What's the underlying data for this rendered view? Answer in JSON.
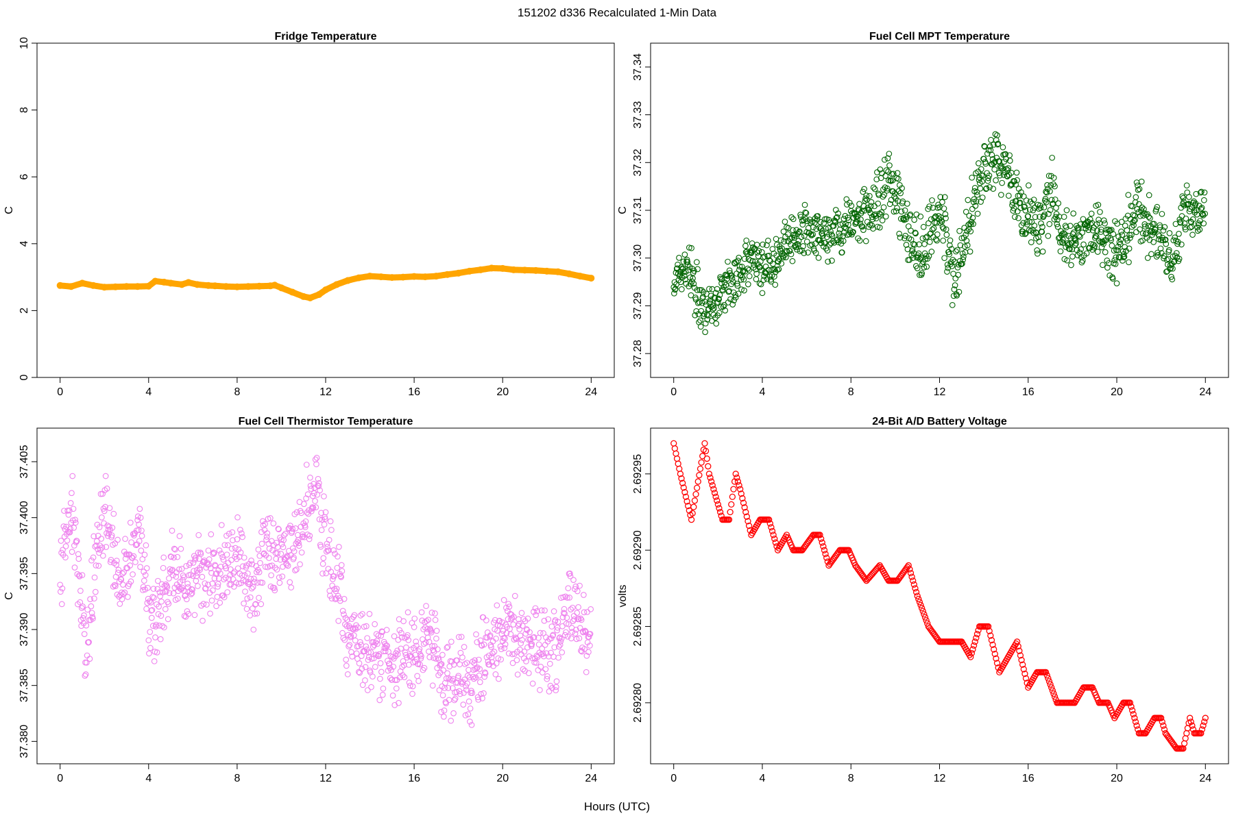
{
  "figure": {
    "title": "151202   d336   Recalculated 1-Min Data",
    "xlabel": "Hours (UTC)"
  },
  "chart_data": [
    {
      "type": "line",
      "title": "Fridge Temperature",
      "xlabel": "Hours (UTC)",
      "ylabel": "C",
      "color": "#FFA500",
      "xlim": [
        0,
        24
      ],
      "ylim": [
        0,
        10
      ],
      "xticks": [
        0,
        4,
        8,
        12,
        16,
        20,
        24
      ],
      "yticks": [
        0,
        2,
        4,
        6,
        8,
        10
      ],
      "ytick_labels": [
        "0",
        "2",
        "4",
        "6",
        "8",
        "10"
      ],
      "x": [
        0,
        0.5,
        1,
        1.5,
        2,
        2.5,
        3,
        3.5,
        4,
        4.3,
        4.7,
        5,
        5.5,
        5.8,
        6.2,
        6.7,
        7,
        7.5,
        8,
        8.5,
        9,
        9.5,
        9.7,
        10,
        10.5,
        11,
        11.3,
        11.7,
        12,
        12.5,
        13,
        13.5,
        14,
        14.5,
        15,
        15.5,
        16,
        16.5,
        17,
        17.5,
        18,
        18.5,
        19,
        19.5,
        20,
        20.5,
        21,
        21.5,
        22,
        22.5,
        23,
        23.5,
        24
      ],
      "values": [
        2.75,
        2.72,
        2.82,
        2.75,
        2.7,
        2.71,
        2.72,
        2.72,
        2.73,
        2.88,
        2.85,
        2.82,
        2.78,
        2.84,
        2.78,
        2.75,
        2.74,
        2.72,
        2.71,
        2.72,
        2.73,
        2.74,
        2.76,
        2.68,
        2.55,
        2.42,
        2.38,
        2.48,
        2.62,
        2.78,
        2.9,
        2.98,
        3.03,
        3.01,
        2.99,
        3.0,
        3.02,
        3.01,
        3.03,
        3.08,
        3.12,
        3.18,
        3.22,
        3.27,
        3.26,
        3.22,
        3.21,
        3.2,
        3.18,
        3.16,
        3.1,
        3.03,
        2.97
      ]
    },
    {
      "type": "scatter",
      "title": "Fuel Cell MPT Temperature",
      "xlabel": "Hours (UTC)",
      "ylabel": "C",
      "color": "#006400",
      "xlim": [
        0,
        24
      ],
      "ylim": [
        37.275,
        37.345
      ],
      "xticks": [
        0,
        4,
        8,
        12,
        16,
        20,
        24
      ],
      "yticks": [
        37.28,
        37.29,
        37.3,
        37.31,
        37.32,
        37.33,
        37.34
      ],
      "ytick_labels": [
        "37.28",
        "37.29",
        "37.30",
        "37.31",
        "37.32",
        "37.33",
        "37.34"
      ],
      "x": [
        0,
        0.7,
        1.5,
        2.5,
        3.5,
        4.3,
        5,
        6,
        7,
        8,
        9,
        9.8,
        10.5,
        11.2,
        12,
        12.7,
        13.3,
        14,
        14.5,
        15,
        16,
        16.5,
        17,
        17.5,
        18,
        19,
        20,
        21,
        21.5,
        22,
        22.5,
        23,
        24
      ],
      "values": [
        37.295,
        37.298,
        37.288,
        37.295,
        37.299,
        37.298,
        37.303,
        37.306,
        37.304,
        37.308,
        37.31,
        37.318,
        37.307,
        37.301,
        37.31,
        37.296,
        37.306,
        37.32,
        37.321,
        37.318,
        37.308,
        37.305,
        37.315,
        37.305,
        37.303,
        37.306,
        37.301,
        37.31,
        37.306,
        37.305,
        37.298,
        37.31,
        37.31
      ],
      "spreads": [
        0.0035,
        0.006,
        0.006,
        0.005,
        0.005,
        0.006,
        0.005,
        0.005,
        0.005,
        0.005,
        0.006,
        0.009,
        0.007,
        0.007,
        0.007,
        0.007,
        0.006,
        0.008,
        0.006,
        0.005,
        0.007,
        0.007,
        0.008,
        0.006,
        0.006,
        0.006,
        0.006,
        0.007,
        0.006,
        0.006,
        0.006,
        0.005,
        0.004
      ]
    },
    {
      "type": "scatter",
      "title": "Fuel Cell Thermistor Temperature",
      "xlabel": "Hours (UTC)",
      "ylabel": "C",
      "color": "#EE82EE",
      "xlim": [
        0,
        24
      ],
      "ylim": [
        37.378,
        37.408
      ],
      "xticks": [
        0,
        4,
        8,
        12,
        16,
        20,
        24
      ],
      "yticks": [
        37.38,
        37.385,
        37.39,
        37.395,
        37.4,
        37.405
      ],
      "ytick_labels": [
        "37.380",
        "37.385",
        "37.390",
        "37.395",
        "37.400",
        "37.405"
      ],
      "x": [
        0,
        0.5,
        1,
        1.2,
        1.5,
        2,
        2.4,
        2.7,
        3,
        3.5,
        4,
        4.3,
        5,
        6,
        7,
        8,
        8.7,
        9.2,
        10,
        10.6,
        11.2,
        11.6,
        12,
        12.6,
        13,
        14,
        15,
        16,
        17,
        17.3,
        18,
        18.5,
        19,
        20,
        21,
        22,
        22.5,
        23,
        24
      ],
      "values": [
        37.394,
        37.402,
        37.392,
        37.388,
        37.395,
        37.401,
        37.397,
        37.393,
        37.396,
        37.399,
        37.392,
        37.391,
        37.395,
        37.394,
        37.395,
        37.396,
        37.393,
        37.397,
        37.396,
        37.398,
        37.401,
        37.403,
        37.397,
        37.394,
        37.39,
        37.388,
        37.387,
        37.388,
        37.389,
        37.384,
        37.387,
        37.385,
        37.387,
        37.39,
        37.389,
        37.388,
        37.388,
        37.392,
        37.389
      ]
    },
    {
      "type": "scatter",
      "title": "24-Bit A/D Battery Voltage",
      "xlabel": "Hours (UTC)",
      "ylabel": "volts",
      "color": "#FF0000",
      "xlim": [
        0,
        24
      ],
      "ylim": [
        2.69276,
        2.69298
      ],
      "xticks": [
        0,
        4,
        8,
        12,
        16,
        20,
        24
      ],
      "yticks": [
        2.6928,
        2.69285,
        2.6929,
        2.69295
      ],
      "ytick_labels": [
        "2.69280",
        "2.69285",
        "2.69290",
        "2.69295"
      ],
      "x": [
        0,
        0.3,
        0.8,
        1.4,
        1.6,
        2.2,
        2.5,
        2.8,
        3.0,
        3.5,
        3.9,
        4.3,
        4.7,
        5.1,
        5.4,
        5.8,
        6.3,
        6.6,
        7.0,
        7.5,
        7.9,
        8.2,
        8.7,
        9.3,
        9.7,
        10.1,
        10.6,
        11.0,
        11.5,
        12.0,
        12.5,
        13.0,
        13.4,
        13.8,
        14.2,
        14.7,
        15.1,
        15.5,
        16.0,
        16.4,
        16.8,
        17.3,
        17.7,
        18.1,
        18.5,
        18.9,
        19.2,
        19.6,
        19.9,
        20.3,
        20.6,
        21.0,
        21.3,
        21.7,
        22.0,
        22.2,
        22.7,
        23.0,
        23.3,
        23.5,
        23.8,
        24.0
      ],
      "values": [
        2.69297,
        2.69295,
        2.69292,
        2.69297,
        2.69295,
        2.69292,
        2.69292,
        2.69295,
        2.69294,
        2.69291,
        2.69292,
        2.69292,
        2.6929,
        2.69291,
        2.6929,
        2.6929,
        2.69291,
        2.69291,
        2.69289,
        2.6929,
        2.6929,
        2.69289,
        2.69288,
        2.69289,
        2.69288,
        2.69288,
        2.69289,
        2.69287,
        2.69285,
        2.69284,
        2.69284,
        2.69284,
        2.69283,
        2.69285,
        2.69285,
        2.69282,
        2.69283,
        2.69284,
        2.69281,
        2.69282,
        2.69282,
        2.6928,
        2.6928,
        2.6928,
        2.69281,
        2.69281,
        2.6928,
        2.6928,
        2.69279,
        2.6928,
        2.6928,
        2.69278,
        2.69278,
        2.69279,
        2.69279,
        2.69278,
        2.69277,
        2.69277,
        2.69279,
        2.69278,
        2.69278,
        2.69279
      ]
    }
  ]
}
